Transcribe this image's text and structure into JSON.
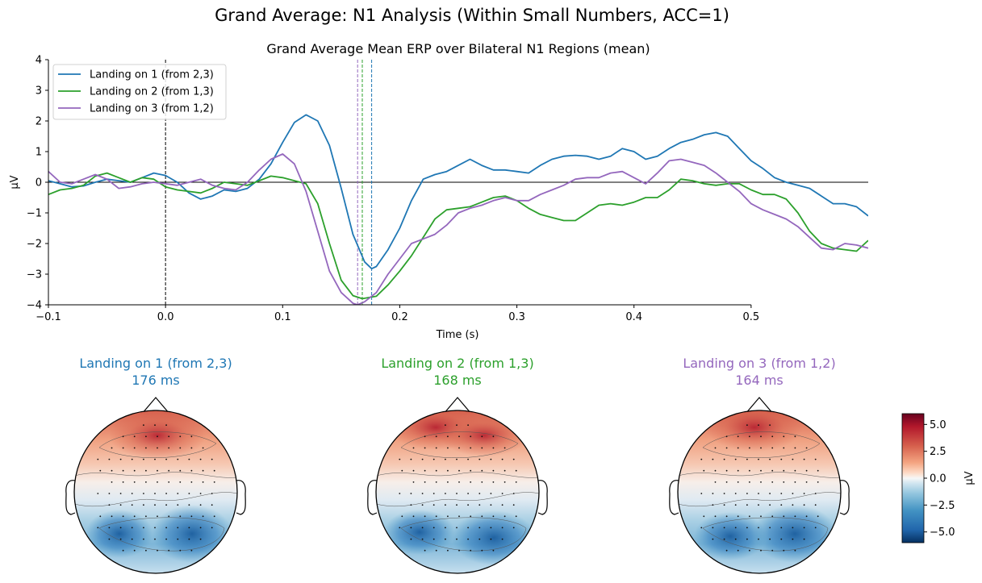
{
  "chart_data": {
    "type": "line",
    "suptitle": "Grand Average: N1 Analysis (Within Small Numbers, ACC=1)",
    "title": "Grand Average Mean ERP over Bilateral N1 Regions (mean)",
    "xlabel": "Time (s)",
    "ylabel": "µV",
    "xlim": [
      -0.1,
      0.6
    ],
    "ylim": [
      -4,
      4
    ],
    "xticks": [
      "−0.1",
      "0.0",
      "0.1",
      "0.2",
      "0.3",
      "0.4",
      "0.5"
    ],
    "yticks": [
      "−4",
      "−3",
      "−2",
      "−1",
      "0",
      "1",
      "2",
      "3",
      "4"
    ],
    "legend_placement": "top-left",
    "series": [
      {
        "name": "Landing on 1 (from 2,3)",
        "color": "#1f77b4",
        "peak_time": 0.176,
        "points": [
          [
            -0.1,
            0.05
          ],
          [
            -0.09,
            -0.05
          ],
          [
            -0.08,
            -0.15
          ],
          [
            -0.07,
            -0.12
          ],
          [
            -0.06,
            0.0
          ],
          [
            -0.05,
            0.1
          ],
          [
            -0.04,
            0.05
          ],
          [
            -0.03,
            0.0
          ],
          [
            -0.02,
            0.15
          ],
          [
            -0.01,
            0.3
          ],
          [
            0.0,
            0.22
          ],
          [
            0.01,
            0.0
          ],
          [
            0.02,
            -0.35
          ],
          [
            0.03,
            -0.55
          ],
          [
            0.04,
            -0.45
          ],
          [
            0.05,
            -0.25
          ],
          [
            0.06,
            -0.3
          ],
          [
            0.07,
            -0.2
          ],
          [
            0.08,
            0.1
          ],
          [
            0.09,
            0.6
          ],
          [
            0.1,
            1.3
          ],
          [
            0.11,
            1.95
          ],
          [
            0.12,
            2.2
          ],
          [
            0.13,
            2.0
          ],
          [
            0.14,
            1.2
          ],
          [
            0.15,
            -0.2
          ],
          [
            0.16,
            -1.7
          ],
          [
            0.17,
            -2.6
          ],
          [
            0.176,
            -2.82
          ],
          [
            0.18,
            -2.75
          ],
          [
            0.19,
            -2.2
          ],
          [
            0.2,
            -1.5
          ],
          [
            0.21,
            -0.6
          ],
          [
            0.22,
            0.1
          ],
          [
            0.23,
            0.25
          ],
          [
            0.24,
            0.35
          ],
          [
            0.25,
            0.55
          ],
          [
            0.26,
            0.75
          ],
          [
            0.27,
            0.55
          ],
          [
            0.28,
            0.4
          ],
          [
            0.29,
            0.4
          ],
          [
            0.3,
            0.35
          ],
          [
            0.31,
            0.3
          ],
          [
            0.32,
            0.55
          ],
          [
            0.33,
            0.75
          ],
          [
            0.34,
            0.85
          ],
          [
            0.35,
            0.88
          ],
          [
            0.36,
            0.85
          ],
          [
            0.37,
            0.75
          ],
          [
            0.38,
            0.85
          ],
          [
            0.39,
            1.1
          ],
          [
            0.4,
            1.0
          ],
          [
            0.41,
            0.75
          ],
          [
            0.42,
            0.85
          ],
          [
            0.43,
            1.1
          ],
          [
            0.44,
            1.3
          ],
          [
            0.45,
            1.4
          ],
          [
            0.46,
            1.55
          ],
          [
            0.47,
            1.62
          ],
          [
            0.48,
            1.5
          ],
          [
            0.49,
            1.1
          ],
          [
            0.5,
            0.7
          ],
          [
            0.51,
            0.45
          ],
          [
            0.52,
            0.15
          ],
          [
            0.53,
            0.0
          ],
          [
            0.54,
            -0.1
          ],
          [
            0.55,
            -0.2
          ],
          [
            0.56,
            -0.45
          ],
          [
            0.57,
            -0.7
          ],
          [
            0.58,
            -0.7
          ],
          [
            0.59,
            -0.8
          ],
          [
            0.6,
            -1.1
          ]
        ]
      },
      {
        "name": "Landing on 2 (from 1,3)",
        "color": "#2ca02c",
        "peak_time": 0.168,
        "points": [
          [
            -0.1,
            -0.4
          ],
          [
            -0.09,
            -0.25
          ],
          [
            -0.08,
            -0.2
          ],
          [
            -0.07,
            -0.1
          ],
          [
            -0.06,
            0.2
          ],
          [
            -0.05,
            0.3
          ],
          [
            -0.04,
            0.15
          ],
          [
            -0.03,
            0.0
          ],
          [
            -0.02,
            0.15
          ],
          [
            -0.01,
            0.1
          ],
          [
            0.0,
            -0.15
          ],
          [
            0.01,
            -0.25
          ],
          [
            0.02,
            -0.3
          ],
          [
            0.03,
            -0.35
          ],
          [
            0.04,
            -0.2
          ],
          [
            0.05,
            0.0
          ],
          [
            0.06,
            -0.05
          ],
          [
            0.07,
            -0.1
          ],
          [
            0.08,
            0.05
          ],
          [
            0.09,
            0.2
          ],
          [
            0.1,
            0.15
          ],
          [
            0.11,
            0.05
          ],
          [
            0.12,
            -0.05
          ],
          [
            0.13,
            -0.7
          ],
          [
            0.14,
            -2.0
          ],
          [
            0.15,
            -3.2
          ],
          [
            0.16,
            -3.7
          ],
          [
            0.168,
            -3.8
          ],
          [
            0.18,
            -3.72
          ],
          [
            0.19,
            -3.35
          ],
          [
            0.2,
            -2.9
          ],
          [
            0.21,
            -2.4
          ],
          [
            0.22,
            -1.8
          ],
          [
            0.23,
            -1.2
          ],
          [
            0.24,
            -0.9
          ],
          [
            0.25,
            -0.85
          ],
          [
            0.26,
            -0.8
          ],
          [
            0.27,
            -0.65
          ],
          [
            0.28,
            -0.5
          ],
          [
            0.29,
            -0.45
          ],
          [
            0.3,
            -0.6
          ],
          [
            0.31,
            -0.85
          ],
          [
            0.32,
            -1.05
          ],
          [
            0.33,
            -1.15
          ],
          [
            0.34,
            -1.25
          ],
          [
            0.35,
            -1.25
          ],
          [
            0.36,
            -1.0
          ],
          [
            0.37,
            -0.75
          ],
          [
            0.38,
            -0.7
          ],
          [
            0.39,
            -0.75
          ],
          [
            0.4,
            -0.65
          ],
          [
            0.41,
            -0.5
          ],
          [
            0.42,
            -0.5
          ],
          [
            0.43,
            -0.25
          ],
          [
            0.44,
            0.1
          ],
          [
            0.45,
            0.05
          ],
          [
            0.46,
            -0.05
          ],
          [
            0.47,
            -0.1
          ],
          [
            0.48,
            -0.05
          ],
          [
            0.49,
            -0.05
          ],
          [
            0.5,
            -0.25
          ],
          [
            0.51,
            -0.4
          ],
          [
            0.52,
            -0.4
          ],
          [
            0.53,
            -0.55
          ],
          [
            0.54,
            -1.0
          ],
          [
            0.55,
            -1.6
          ],
          [
            0.56,
            -2.0
          ],
          [
            0.57,
            -2.15
          ],
          [
            0.58,
            -2.2
          ],
          [
            0.59,
            -2.25
          ],
          [
            0.6,
            -1.9
          ]
        ]
      },
      {
        "name": "Landing on 3 (from 1,2)",
        "color": "#9467bd",
        "peak_time": 0.164,
        "points": [
          [
            -0.1,
            0.35
          ],
          [
            -0.09,
            0.0
          ],
          [
            -0.08,
            -0.05
          ],
          [
            -0.07,
            0.1
          ],
          [
            -0.06,
            0.25
          ],
          [
            -0.05,
            0.1
          ],
          [
            -0.04,
            -0.2
          ],
          [
            -0.03,
            -0.15
          ],
          [
            -0.02,
            -0.05
          ],
          [
            -0.01,
            0.0
          ],
          [
            0.0,
            -0.05
          ],
          [
            0.01,
            -0.1
          ],
          [
            0.02,
            0.0
          ],
          [
            0.03,
            0.1
          ],
          [
            0.04,
            -0.1
          ],
          [
            0.05,
            -0.2
          ],
          [
            0.06,
            -0.25
          ],
          [
            0.07,
            0.0
          ],
          [
            0.08,
            0.4
          ],
          [
            0.09,
            0.75
          ],
          [
            0.1,
            0.92
          ],
          [
            0.11,
            0.6
          ],
          [
            0.12,
            -0.3
          ],
          [
            0.13,
            -1.6
          ],
          [
            0.14,
            -2.9
          ],
          [
            0.15,
            -3.6
          ],
          [
            0.16,
            -3.95
          ],
          [
            0.164,
            -4.0
          ],
          [
            0.17,
            -3.9
          ],
          [
            0.18,
            -3.6
          ],
          [
            0.19,
            -3.0
          ],
          [
            0.2,
            -2.5
          ],
          [
            0.21,
            -2.0
          ],
          [
            0.22,
            -1.85
          ],
          [
            0.23,
            -1.7
          ],
          [
            0.24,
            -1.4
          ],
          [
            0.25,
            -1.0
          ],
          [
            0.26,
            -0.85
          ],
          [
            0.27,
            -0.75
          ],
          [
            0.28,
            -0.6
          ],
          [
            0.29,
            -0.5
          ],
          [
            0.3,
            -0.6
          ],
          [
            0.31,
            -0.6
          ],
          [
            0.32,
            -0.4
          ],
          [
            0.33,
            -0.25
          ],
          [
            0.34,
            -0.1
          ],
          [
            0.35,
            0.1
          ],
          [
            0.36,
            0.15
          ],
          [
            0.37,
            0.15
          ],
          [
            0.38,
            0.3
          ],
          [
            0.39,
            0.35
          ],
          [
            0.4,
            0.15
          ],
          [
            0.41,
            -0.05
          ],
          [
            0.42,
            0.3
          ],
          [
            0.43,
            0.7
          ],
          [
            0.44,
            0.75
          ],
          [
            0.45,
            0.65
          ],
          [
            0.46,
            0.55
          ],
          [
            0.47,
            0.3
          ],
          [
            0.48,
            0.0
          ],
          [
            0.49,
            -0.3
          ],
          [
            0.5,
            -0.7
          ],
          [
            0.51,
            -0.9
          ],
          [
            0.52,
            -1.05
          ],
          [
            0.53,
            -1.2
          ],
          [
            0.54,
            -1.45
          ],
          [
            0.55,
            -1.8
          ],
          [
            0.56,
            -2.15
          ],
          [
            0.57,
            -2.2
          ],
          [
            0.58,
            -2.0
          ],
          [
            0.59,
            -2.05
          ],
          [
            0.6,
            -2.15
          ]
        ]
      }
    ],
    "topomaps": [
      {
        "title": "Landing on 1 (from 2,3)",
        "time": "176 ms",
        "color": "#1f77b4"
      },
      {
        "title": "Landing on 2 (from 1,3)",
        "time": "168 ms",
        "color": "#2ca02c"
      },
      {
        "title": "Landing on 3 (from 1,2)",
        "time": "164 ms",
        "color": "#9467bd"
      }
    ],
    "colorbar": {
      "label": "µV",
      "ticks": [
        "5.0",
        "2.5",
        "0.0",
        "−2.5",
        "−5.0"
      ],
      "tick_values": [
        5.0,
        2.5,
        0.0,
        -2.5,
        -5.0
      ],
      "range": [
        -6,
        6
      ],
      "colormap": "RdBu_r"
    }
  }
}
